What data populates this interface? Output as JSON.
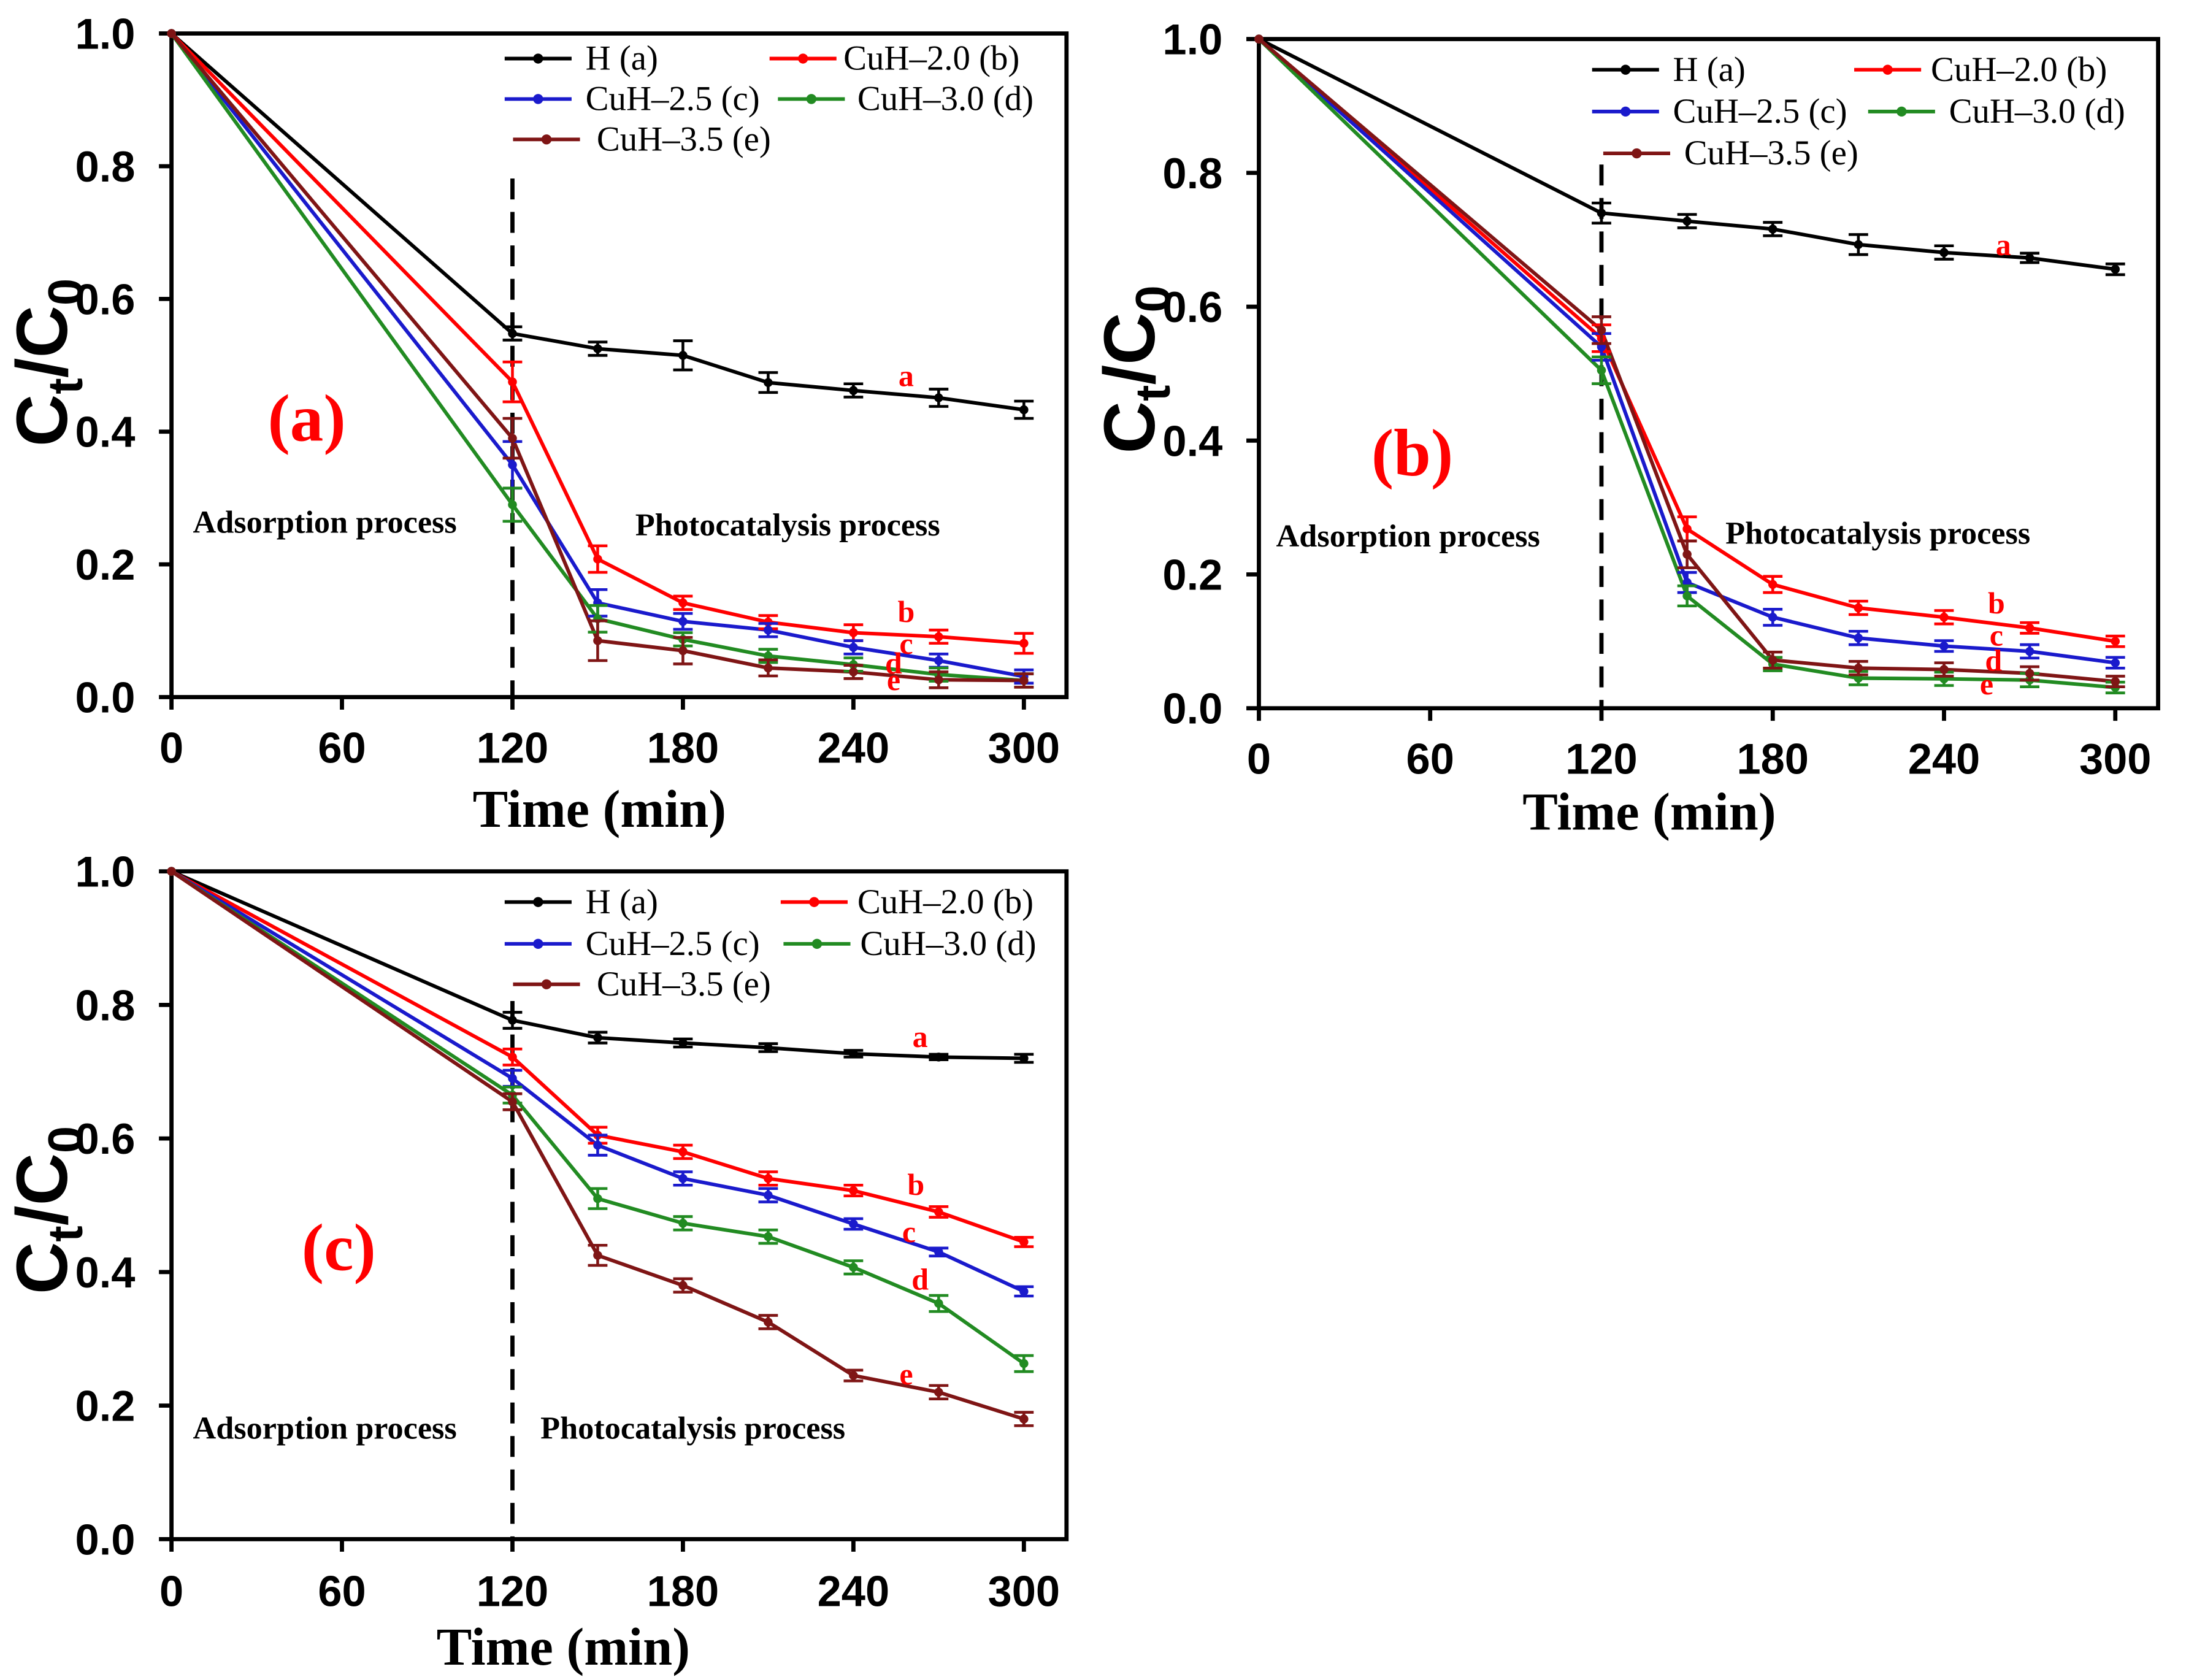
{
  "chart_data": [
    {
      "type": "line",
      "panel_label": "(a)",
      "xlabel": "Time (min)",
      "ylabel": {
        "c1": "C",
        "s1": "t",
        "mid": "/C",
        "s2": "0"
      },
      "xlim": [
        0,
        315
      ],
      "ylim": [
        0,
        1.0
      ],
      "xticks": [
        0,
        60,
        120,
        180,
        240,
        300
      ],
      "xtick_labels": [
        "0",
        "60",
        "120",
        "180",
        "240",
        "300"
      ],
      "yticks": [
        0,
        0.2,
        0.4,
        0.6,
        0.8,
        1.0
      ],
      "ytick_labels": [
        "0.0",
        "0.2",
        "0.4",
        "0.6",
        "0.8",
        "1.0"
      ],
      "grid": false,
      "legend_loc": "top-right",
      "divider_x": 120,
      "annotation_color": "#ff0000",
      "annotations": {
        "left_region": "Adsorption process",
        "right_region": "Photocatalysis process"
      },
      "x": [
        0,
        120,
        150,
        180,
        210,
        240,
        270,
        300
      ],
      "series": [
        {
          "name": "H (a)",
          "tag": "a",
          "color": "#000000",
          "values": [
            1.0,
            0.548,
            0.525,
            0.515,
            0.474,
            0.462,
            0.451,
            0.433
          ],
          "errors": [
            0,
            0.01,
            0.01,
            0.022,
            0.015,
            0.01,
            0.013,
            0.013
          ]
        },
        {
          "name": "CuH–2.0 (b)",
          "tag": "b",
          "color": "#ff0000",
          "values": [
            1.0,
            0.475,
            0.208,
            0.142,
            0.113,
            0.097,
            0.091,
            0.081
          ],
          "errors": [
            0,
            0.03,
            0.02,
            0.01,
            0.01,
            0.012,
            0.01,
            0.015
          ]
        },
        {
          "name": "CuH–2.5 (c)",
          "tag": "c",
          "color": "#1a1acc",
          "values": [
            1.0,
            0.35,
            0.142,
            0.114,
            0.101,
            0.075,
            0.055,
            0.031
          ],
          "errors": [
            0,
            0.035,
            0.02,
            0.012,
            0.01,
            0.01,
            0.01,
            0.01
          ]
        },
        {
          "name": "CuH–3.0 (d)",
          "tag": "d",
          "color": "#228b22",
          "values": [
            1.0,
            0.29,
            0.118,
            0.087,
            0.062,
            0.049,
            0.034,
            0.025
          ],
          "errors": [
            0,
            0.025,
            0.02,
            0.01,
            0.01,
            0.01,
            0.01,
            0.01
          ]
        },
        {
          "name": "CuH–3.5 (e)",
          "tag": "e",
          "color": "#7f1515",
          "values": [
            1.0,
            0.39,
            0.085,
            0.07,
            0.044,
            0.038,
            0.026,
            0.025
          ],
          "errors": [
            0,
            0.03,
            0.03,
            0.02,
            0.012,
            0.01,
            0.012,
            0.01
          ]
        }
      ]
    },
    {
      "type": "line",
      "panel_label": "(b)",
      "xlabel": "Time (min)",
      "ylabel": {
        "c1": "C",
        "s1": "t",
        "mid": "/C",
        "s2": "0"
      },
      "xlim": [
        0,
        315
      ],
      "ylim": [
        0,
        1.0
      ],
      "xticks": [
        0,
        60,
        120,
        180,
        240,
        300
      ],
      "xtick_labels": [
        "0",
        "60",
        "120",
        "180",
        "240",
        "300"
      ],
      "yticks": [
        0,
        0.2,
        0.4,
        0.6,
        0.8,
        1.0
      ],
      "ytick_labels": [
        "0.0",
        "0.2",
        "0.4",
        "0.6",
        "0.8",
        "1.0"
      ],
      "grid": false,
      "legend_loc": "top-right",
      "divider_x": 120,
      "annotation_color": "#ff0000",
      "annotations": {
        "left_region": "Adsorption process",
        "right_region": "Photocatalysis process"
      },
      "x": [
        0,
        120,
        150,
        180,
        210,
        240,
        270,
        300
      ],
      "series": [
        {
          "name": "H (a)",
          "tag": "a",
          "color": "#000000",
          "values": [
            1.0,
            0.74,
            0.728,
            0.716,
            0.693,
            0.681,
            0.673,
            0.656
          ],
          "errors": [
            0,
            0.015,
            0.01,
            0.01,
            0.015,
            0.01,
            0.007,
            0.008
          ]
        },
        {
          "name": "CuH–2.0 (b)",
          "tag": "b",
          "color": "#ff0000",
          "values": [
            1.0,
            0.553,
            0.268,
            0.185,
            0.15,
            0.136,
            0.12,
            0.1
          ],
          "errors": [
            0,
            0.02,
            0.018,
            0.012,
            0.01,
            0.01,
            0.008,
            0.008
          ]
        },
        {
          "name": "CuH–2.5 (c)",
          "tag": "c",
          "color": "#1a1acc",
          "values": [
            1.0,
            0.54,
            0.188,
            0.136,
            0.105,
            0.093,
            0.085,
            0.068
          ],
          "errors": [
            0,
            0.02,
            0.015,
            0.012,
            0.01,
            0.008,
            0.01,
            0.008
          ]
        },
        {
          "name": "CuH–3.0 (d)",
          "tag": "d",
          "color": "#228b22",
          "values": [
            1.0,
            0.505,
            0.168,
            0.066,
            0.045,
            0.044,
            0.042,
            0.031
          ],
          "errors": [
            0,
            0.02,
            0.015,
            0.01,
            0.01,
            0.01,
            0.01,
            0.008
          ]
        },
        {
          "name": "CuH–3.5 (e)",
          "tag": "e",
          "color": "#7f1515",
          "values": [
            1.0,
            0.565,
            0.23,
            0.072,
            0.06,
            0.058,
            0.052,
            0.04
          ],
          "errors": [
            0,
            0.02,
            0.02,
            0.012,
            0.01,
            0.01,
            0.01,
            0.008
          ]
        }
      ]
    },
    {
      "type": "line",
      "panel_label": "(c)",
      "xlabel": "Time (min)",
      "ylabel": {
        "c1": "C",
        "s1": "t",
        "mid": "/C",
        "s2": "0"
      },
      "xlim": [
        0,
        315
      ],
      "ylim": [
        0,
        1.0
      ],
      "xticks": [
        0,
        60,
        120,
        180,
        240,
        300
      ],
      "xtick_labels": [
        "0",
        "60",
        "120",
        "180",
        "240",
        "300"
      ],
      "yticks": [
        0,
        0.2,
        0.4,
        0.6,
        0.8,
        1.0
      ],
      "ytick_labels": [
        "0.0",
        "0.2",
        "0.4",
        "0.6",
        "0.8",
        "1.0"
      ],
      "grid": false,
      "legend_loc": "top-right",
      "divider_x": 120,
      "annotation_color": "#ff0000",
      "annotations": {
        "left_region": "Adsorption process",
        "right_region": "Photocatalysis process"
      },
      "x": [
        0,
        120,
        150,
        180,
        210,
        240,
        270,
        300
      ],
      "series": [
        {
          "name": "H (a)",
          "tag": "a",
          "color": "#000000",
          "values": [
            1.0,
            0.777,
            0.751,
            0.743,
            0.736,
            0.727,
            0.722,
            0.72
          ],
          "errors": [
            0,
            0.012,
            0.008,
            0.006,
            0.006,
            0.005,
            0.004,
            0.006
          ]
        },
        {
          "name": "CuH–2.0 (b)",
          "tag": "b",
          "color": "#ff0000",
          "values": [
            1.0,
            0.722,
            0.605,
            0.58,
            0.54,
            0.522,
            0.49,
            0.445
          ],
          "errors": [
            0,
            0.012,
            0.012,
            0.01,
            0.01,
            0.008,
            0.008,
            0.007
          ]
        },
        {
          "name": "CuH–2.5 (c)",
          "tag": "c",
          "color": "#1a1acc",
          "values": [
            1.0,
            0.69,
            0.59,
            0.54,
            0.515,
            0.472,
            0.43,
            0.371
          ],
          "errors": [
            0,
            0.012,
            0.015,
            0.01,
            0.01,
            0.008,
            0.006,
            0.007
          ]
        },
        {
          "name": "CuH–3.0 (d)",
          "tag": "d",
          "color": "#228b22",
          "values": [
            1.0,
            0.665,
            0.51,
            0.473,
            0.453,
            0.407,
            0.353,
            0.263
          ],
          "errors": [
            0,
            0.012,
            0.015,
            0.01,
            0.01,
            0.01,
            0.012,
            0.012
          ]
        },
        {
          "name": "CuH–3.5 (e)",
          "tag": "e",
          "color": "#7f1515",
          "values": [
            1.0,
            0.655,
            0.425,
            0.38,
            0.325,
            0.245,
            0.22,
            0.18
          ],
          "errors": [
            0,
            0.012,
            0.015,
            0.01,
            0.01,
            0.008,
            0.01,
            0.01
          ]
        }
      ]
    }
  ]
}
